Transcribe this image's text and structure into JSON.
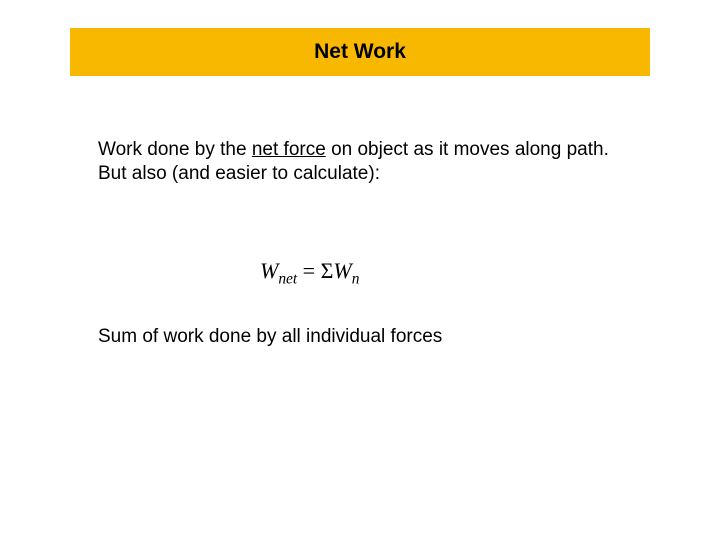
{
  "colors": {
    "banner_bg": "#f9b800",
    "banner_border": "#f9b800",
    "text": "#000000",
    "background": "#ffffff"
  },
  "typography": {
    "title_fontsize": 21,
    "title_weight": "bold",
    "body_fontsize": 19,
    "equation_fontsize": 22,
    "font_family": "Arial"
  },
  "title": "Net Work",
  "body": {
    "line1_prefix": "Work done by the ",
    "line1_underlined": "net force",
    "line1_suffix": " on object as it moves along path.",
    "line2": "But also (and easier to calculate):"
  },
  "equation": {
    "lhs_var": "W",
    "lhs_sub": "net",
    "eq": " = ",
    "rhs_sigma": "Σ",
    "rhs_var": "W",
    "rhs_sub": "n"
  },
  "summary": "Sum of work done by all individual forces"
}
